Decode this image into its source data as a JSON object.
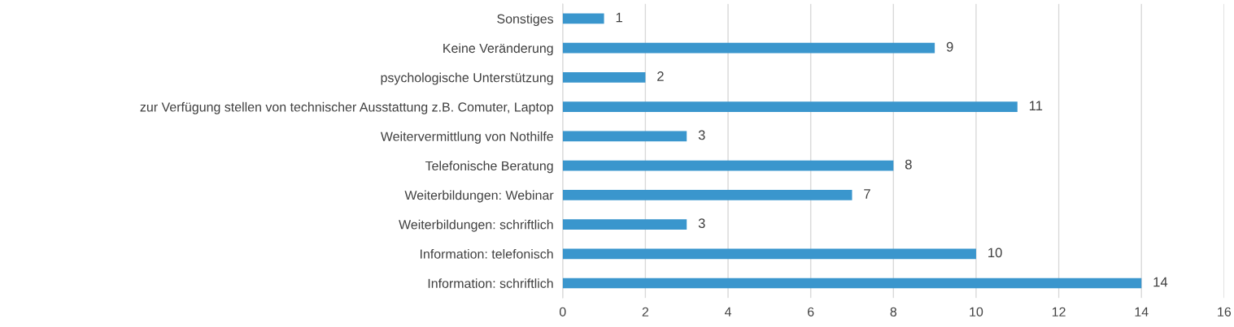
{
  "chart_data": {
    "type": "bar",
    "orientation": "horizontal",
    "categories": [
      "Sonstiges",
      "Keine Veränderung",
      "psychologische Unterstützung",
      "zur Verfügung stellen von technischer Ausstattung z.B. Comuter, Laptop",
      "Weitervermittlung von Nothilfe",
      "Telefonische Beratung",
      "Weiterbildungen: Webinar",
      "Weiterbildungen: schriftlich",
      "Information: telefonisch",
      "Information: schriftlich"
    ],
    "values": [
      1,
      9,
      2,
      11,
      3,
      8,
      7,
      3,
      10,
      14
    ],
    "color": "#3a96cd",
    "xlim": [
      0,
      16
    ],
    "xticks": [
      0,
      2,
      4,
      6,
      8,
      10,
      12,
      14,
      16
    ],
    "grid": "x",
    "data_labels": true
  }
}
